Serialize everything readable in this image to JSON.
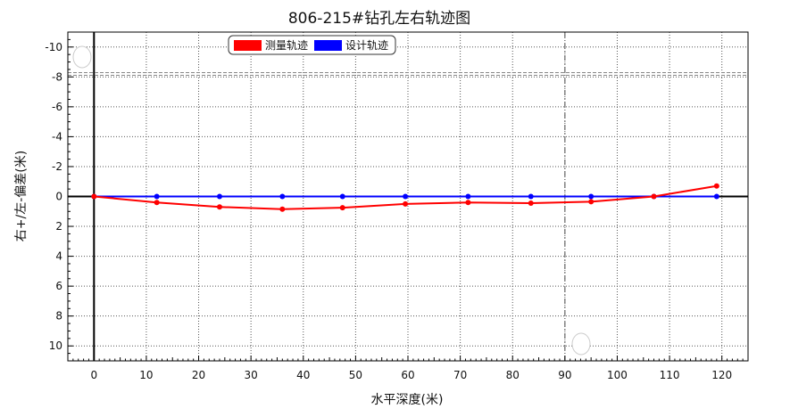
{
  "chart_data": {
    "type": "line",
    "title": "806-215#钻孔左右轨迹图",
    "xlabel": "水平深度(米)",
    "ylabel": "右+/左-偏差(米)",
    "xlim": [
      -5,
      125
    ],
    "ylim": [
      -11,
      11
    ],
    "y_inverted": true,
    "xticks": [
      0,
      10,
      20,
      30,
      40,
      50,
      60,
      70,
      80,
      90,
      100,
      110,
      120
    ],
    "xtick_labels": [
      "0",
      "10",
      "20",
      "30",
      "40",
      "50",
      "60",
      "70",
      "80",
      "90",
      "100",
      "110",
      "120"
    ],
    "yticks": [
      -10,
      -8,
      -6,
      -4,
      -2,
      0,
      2,
      4,
      6,
      8,
      10
    ],
    "ytick_labels": [
      "-10",
      "-8",
      "-6",
      "-4",
      "-2",
      "0",
      "2",
      "4",
      "6",
      "8",
      "10"
    ],
    "grid": true,
    "legend_position": "top-left",
    "reference_lines": {
      "x": [
        0,
        90
      ],
      "y": [
        0,
        -8.2
      ]
    },
    "series": [
      {
        "name": "测量轨迹",
        "color": "#ff0000",
        "x": [
          0,
          12,
          24,
          36,
          47.5,
          59.5,
          71.5,
          83.5,
          95,
          107,
          119
        ],
        "y": [
          0,
          0.4,
          0.7,
          0.85,
          0.75,
          0.5,
          0.4,
          0.45,
          0.35,
          0,
          -0.7
        ]
      },
      {
        "name": "设计轨迹",
        "color": "#0000ff",
        "x": [
          0,
          12,
          24,
          36,
          47.5,
          59.5,
          71.5,
          83.5,
          95,
          107,
          119
        ],
        "y": [
          0,
          0,
          0,
          0,
          0,
          0,
          0,
          0,
          0,
          0,
          0
        ]
      }
    ]
  }
}
